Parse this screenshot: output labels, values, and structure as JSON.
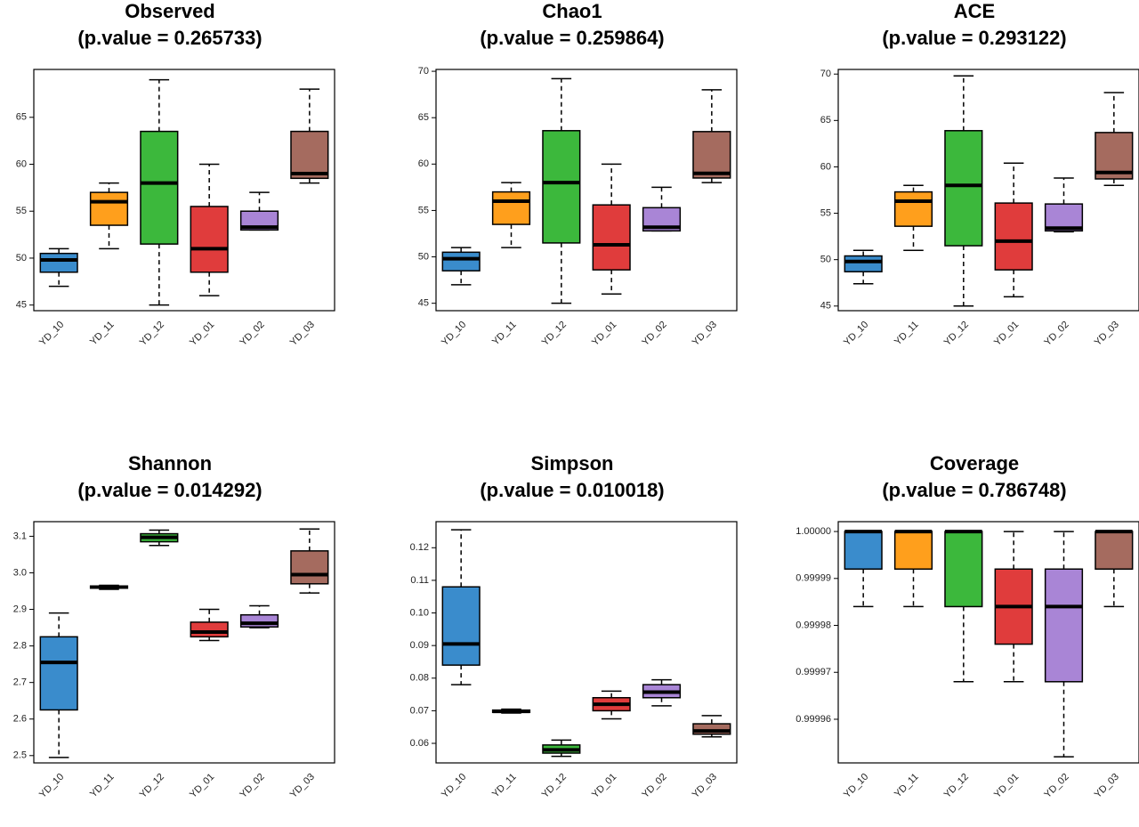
{
  "chart_data": [
    {
      "type": "box",
      "title": "Observed",
      "subtitle": "(p.value = 0.265733)",
      "categories": [
        "YD_10",
        "YD_11",
        "YD_12",
        "YD_01",
        "YD_02",
        "YD_03"
      ],
      "colors": [
        "#3a8ccc",
        "#ff9f1c",
        "#3cb83c",
        "#e03c3c",
        "#a985d6",
        "#a56b5f"
      ],
      "min": [
        47,
        51,
        45,
        46,
        53,
        58
      ],
      "q1": [
        48.5,
        53.5,
        51.5,
        48.5,
        53,
        58.5
      ],
      "median": [
        49.8,
        56,
        58,
        51,
        53.3,
        59
      ],
      "q3": [
        50.5,
        57,
        63.5,
        55.5,
        55,
        63.5
      ],
      "max": [
        51,
        58,
        69,
        60,
        57,
        68
      ],
      "ylim": [
        44.4,
        70.1
      ],
      "yticks": [
        45,
        50,
        55,
        60,
        65
      ]
    },
    {
      "type": "box",
      "title": "Chao1",
      "subtitle": "(p.value = 0.259864)",
      "categories": [
        "YD_10",
        "YD_11",
        "YD_12",
        "YD_01",
        "YD_02",
        "YD_03"
      ],
      "colors": [
        "#3a8ccc",
        "#ff9f1c",
        "#3cb83c",
        "#e03c3c",
        "#a985d6",
        "#a56b5f"
      ],
      "min": [
        47,
        51,
        45,
        46,
        52.8,
        58
      ],
      "q1": [
        48.5,
        53.5,
        51.5,
        48.6,
        52.8,
        58.5
      ],
      "median": [
        49.8,
        56,
        58,
        51.3,
        53.2,
        59
      ],
      "q3": [
        50.5,
        57,
        63.6,
        55.6,
        55.3,
        63.5
      ],
      "max": [
        51,
        58,
        69.2,
        60,
        57.5,
        68
      ],
      "ylim": [
        44.2,
        70.2
      ],
      "yticks": [
        45,
        50,
        55,
        60,
        65,
        70
      ]
    },
    {
      "type": "box",
      "title": "ACE",
      "subtitle": "(p.value = 0.293122)",
      "categories": [
        "YD_10",
        "YD_11",
        "YD_12",
        "YD_01",
        "YD_02",
        "YD_03"
      ],
      "colors": [
        "#3a8ccc",
        "#ff9f1c",
        "#3cb83c",
        "#e03c3c",
        "#a985d6",
        "#a56b5f"
      ],
      "min": [
        47.4,
        51,
        45,
        46,
        53,
        58
      ],
      "q1": [
        48.7,
        53.6,
        51.5,
        48.9,
        53.1,
        58.7
      ],
      "median": [
        49.8,
        56.3,
        58,
        52,
        53.4,
        59.4
      ],
      "q3": [
        50.4,
        57.3,
        63.9,
        56.1,
        56,
        63.7
      ],
      "max": [
        51,
        58,
        69.8,
        60.4,
        58.8,
        68
      ],
      "ylim": [
        44.5,
        70.5
      ],
      "yticks": [
        45,
        50,
        55,
        60,
        65,
        70
      ]
    },
    {
      "type": "box",
      "title": "Shannon",
      "subtitle": "(p.value = 0.014292)",
      "categories": [
        "YD_10",
        "YD_11",
        "YD_12",
        "YD_01",
        "YD_02",
        "YD_03"
      ],
      "colors": [
        "#3a8ccc",
        "#ff9f1c",
        "#3cb83c",
        "#e03c3c",
        "#a985d6",
        "#a56b5f"
      ],
      "min": [
        2.495,
        2.955,
        3.075,
        2.815,
        2.85,
        2.945
      ],
      "q1": [
        2.625,
        2.958,
        3.085,
        2.825,
        2.852,
        2.97
      ],
      "median": [
        2.755,
        2.961,
        3.097,
        2.838,
        2.862,
        2.995
      ],
      "q3": [
        2.825,
        2.964,
        3.107,
        2.865,
        2.885,
        3.06
      ],
      "max": [
        2.89,
        2.966,
        3.117,
        2.9,
        2.91,
        3.12
      ],
      "ylim": [
        2.48,
        3.14
      ],
      "yticks": [
        2.5,
        2.6,
        2.7,
        2.8,
        2.9,
        {
          "value": 3,
          "label": "3.0"
        },
        3.1
      ]
    },
    {
      "type": "box",
      "title": "Simpson",
      "subtitle": "(p.value = 0.010018)",
      "categories": [
        "YD_10",
        "YD_11",
        "YD_12",
        "YD_01",
        "YD_02",
        "YD_03"
      ],
      "colors": [
        "#3a8ccc",
        "#ff9f1c",
        "#3cb83c",
        "#e03c3c",
        "#a985d6",
        "#a56b5f"
      ],
      "min": [
        0.078,
        0.0693,
        0.056,
        0.0675,
        0.0715,
        0.062
      ],
      "q1": [
        0.084,
        0.0695,
        0.057,
        0.07,
        0.074,
        0.0628
      ],
      "median": [
        0.0905,
        0.0698,
        0.058,
        0.072,
        0.0757,
        0.0638
      ],
      "q3": [
        0.108,
        0.0702,
        0.0595,
        0.074,
        0.078,
        0.066
      ],
      "max": [
        0.1255,
        0.0705,
        0.061,
        0.076,
        0.0795,
        0.0685
      ],
      "ylim": [
        0.054,
        0.128
      ],
      "yticks": [
        {
          "value": 0.06,
          "label": "0.06"
        },
        0.07,
        0.08,
        0.09,
        {
          "value": 0.1,
          "label": "0.10"
        },
        0.11,
        0.12
      ]
    },
    {
      "type": "box",
      "title": "Coverage",
      "subtitle": "(p.value = 0.786748)",
      "categories": [
        "YD_10",
        "YD_11",
        "YD_12",
        "YD_01",
        "YD_02",
        "YD_03"
      ],
      "colors": [
        "#3a8ccc",
        "#ff9f1c",
        "#3cb83c",
        "#e03c3c",
        "#a985d6",
        "#a56b5f"
      ],
      "min": [
        0.999984,
        0.999984,
        0.999968,
        0.999968,
        0.999952,
        0.999984
      ],
      "q1": [
        0.999992,
        0.999992,
        0.999984,
        0.999976,
        0.999968,
        0.999992
      ],
      "median": [
        1,
        1,
        1,
        0.999984,
        0.999984,
        1
      ],
      "q3": [
        1,
        1,
        1,
        0.999992,
        0.999992,
        1
      ],
      "max": [
        1,
        1,
        1,
        1,
        1,
        1
      ],
      "ylim": [
        0.9999507,
        1.0000021
      ],
      "yticks": [
        0.99996,
        0.99997,
        0.99998,
        0.99999,
        {
          "value": 1,
          "label": "1.00000"
        }
      ]
    }
  ]
}
